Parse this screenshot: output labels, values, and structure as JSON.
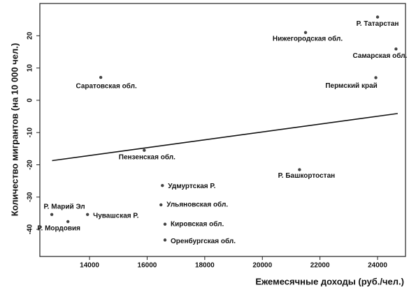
{
  "chart_data": {
    "type": "scatter",
    "xlabel": "Ежемесячные доходы (руб./чел.)",
    "ylabel": "Количество мигрантов (на 10 000 чел.)",
    "labels": [
      "Р. Татарстан",
      "Нижегородская обл.",
      "Самарская обл.",
      "Саратовская обл.",
      "Пермский край",
      "Пензенская обл.",
      "Р. Башкортостан",
      "Удмуртская Р.",
      "Ульяновская обл.",
      "Кировская обл.",
      "Оренбургская обл.",
      "Р. Марий Эл",
      "Р. Мордовия",
      "Чувашская Р."
    ],
    "x": [
      24000,
      21500,
      24640,
      14390,
      23940,
      15900,
      21290,
      16530,
      16480,
      16620,
      16620,
      12690,
      13250,
      13930
    ],
    "y": [
      25.8,
      21,
      15.9,
      7.1,
      7,
      -15.5,
      -21.5,
      -26.4,
      -32.4,
      -38.4,
      -43.3,
      -35.4,
      -37.6,
      -35.4
    ],
    "color": "#444444",
    "trend_line": {
      "x": [
        12700,
        24700
      ],
      "y": [
        -18.7,
        -4.1
      ]
    },
    "xlim": [
      12275,
      24970
    ],
    "ylim": [
      -48.4,
      30
    ],
    "xticks": [
      14000,
      16000,
      18000,
      20000,
      22000,
      24000
    ],
    "yticks": [
      -40,
      -30,
      -20,
      -10,
      0,
      10,
      20
    ]
  }
}
